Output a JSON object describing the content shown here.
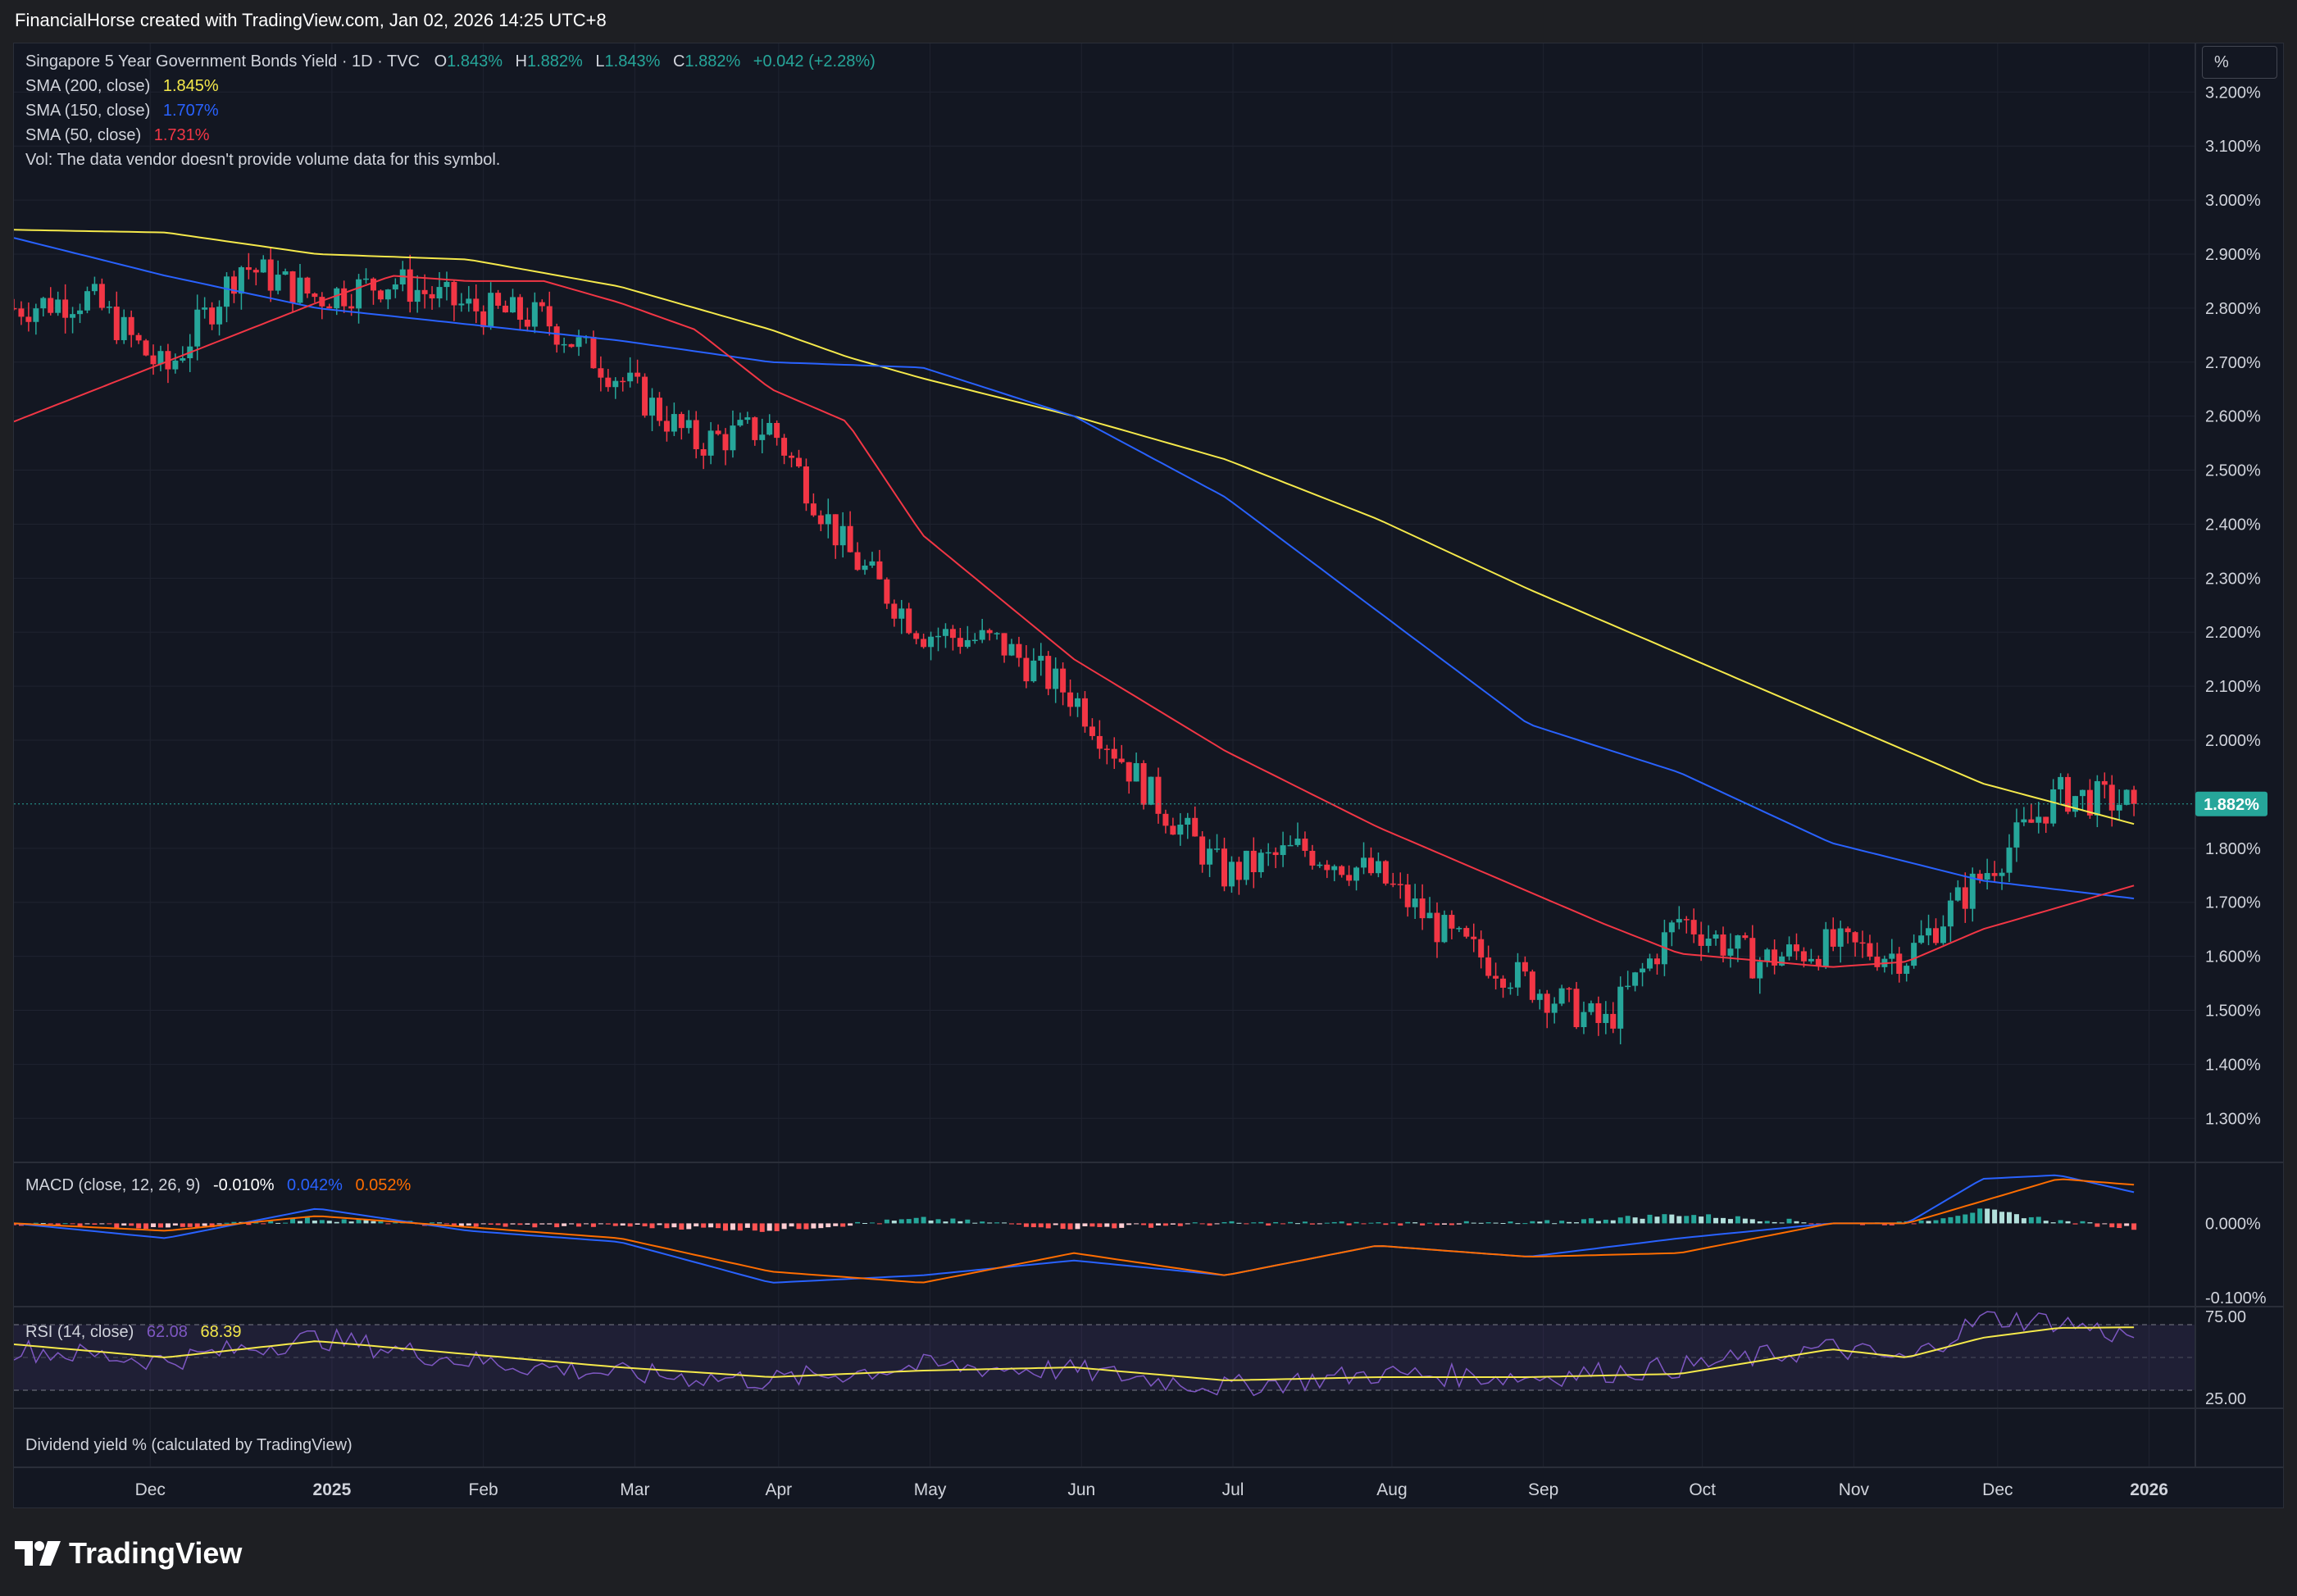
{
  "header": {
    "attribution": "FinancialHorse created with TradingView.com, Jan 02, 2026 14:25 UTC+8"
  },
  "units_button": {
    "label": "%"
  },
  "brand": {
    "name": "TradingView"
  },
  "legend": {
    "symbol": "Singapore 5 Year Government Bonds Yield · 1D · TVC",
    "ohlc": [
      {
        "key": "O",
        "value": "1.843%"
      },
      {
        "key": "H",
        "value": "1.882%"
      },
      {
        "key": "L",
        "value": "1.843%"
      },
      {
        "key": "C",
        "value": "1.882%"
      }
    ],
    "change": "+0.042 (+2.28%)",
    "sma": [
      {
        "label": "SMA (200, close)",
        "value": "1.845%",
        "color": "#f5e94b"
      },
      {
        "label": "SMA (150, close)",
        "value": "1.707%",
        "color": "#2962ff"
      },
      {
        "label": "SMA (50, close)",
        "value": "1.731%",
        "color": "#f23645"
      }
    ],
    "vol_note": "Vol: The data vendor doesn't provide volume data for this symbol."
  },
  "price_badge": "1.882%",
  "macd_legend": {
    "label": "MACD (close, 12, 26, 9)",
    "hist": "-0.010%",
    "macd": "0.042%",
    "signal": "0.052%"
  },
  "rsi_legend": {
    "label": "RSI (14, close)",
    "rsi": "62.08",
    "ma": "68.39"
  },
  "dividend_label": "Dividend yield % (calculated by TradingView)",
  "colors": {
    "up": "#26a69a",
    "down": "#f23645",
    "sma200": "#f5e94b",
    "sma150": "#2962ff",
    "sma50": "#f23645",
    "macd": "#2962ff",
    "signal": "#ff6d00",
    "rsi": "#7e57c2",
    "rsi_ma": "#f5e94b",
    "background": "#131722"
  },
  "chart_data": {
    "type": "candlestick",
    "title": "Singapore 5 Year Government Bonds Yield · 1D · TVC",
    "price_axis": {
      "range": [
        1.22,
        3.29
      ],
      "ticks": [
        "3.200%",
        "3.100%",
        "3.000%",
        "2.900%",
        "2.800%",
        "2.700%",
        "2.600%",
        "2.500%",
        "2.400%",
        "2.300%",
        "2.200%",
        "2.100%",
        "2.000%",
        "1.800%",
        "1.700%",
        "1.600%",
        "1.500%",
        "1.400%",
        "1.300%"
      ]
    },
    "time_axis": {
      "labels": [
        "Dec",
        "2025",
        "Feb",
        "Mar",
        "Apr",
        "May",
        "Jun",
        "Jul",
        "Aug",
        "Sep",
        "Oct",
        "Nov",
        "Dec",
        "2026"
      ],
      "label_t": [
        0.9,
        2.1,
        3.1,
        4.1,
        5.05,
        6.05,
        7.05,
        8.05,
        9.1,
        10.1,
        11.15,
        12.15,
        13.1,
        14.1
      ]
    },
    "price_series": {
      "t": [
        0,
        0.5,
        1,
        1.5,
        2,
        2.5,
        3,
        3.5,
        4,
        4.5,
        5,
        5.5,
        6,
        6.5,
        7,
        7.5,
        8,
        8.5,
        9,
        9.5,
        10,
        10.5,
        11,
        11.5,
        12,
        12.5,
        13,
        13.5,
        14
      ],
      "close": [
        2.8,
        2.82,
        2.68,
        2.88,
        2.82,
        2.85,
        2.8,
        2.78,
        2.67,
        2.55,
        2.58,
        2.35,
        2.2,
        2.18,
        2.08,
        1.9,
        1.75,
        1.8,
        1.75,
        1.63,
        1.55,
        1.47,
        1.67,
        1.59,
        1.62,
        1.6,
        1.75,
        1.9,
        1.882
      ]
    },
    "sma200": {
      "t": [
        0,
        1,
        2,
        3,
        4,
        4.5,
        5,
        5.5,
        6,
        7,
        8,
        9,
        10,
        11,
        12,
        13,
        14
      ],
      "values": [
        2.945,
        2.94,
        2.9,
        2.89,
        2.84,
        2.8,
        2.76,
        2.71,
        2.67,
        2.6,
        2.52,
        2.41,
        2.28,
        2.16,
        2.04,
        1.92,
        1.845
      ]
    },
    "sma150": {
      "t": [
        0,
        1,
        2,
        3,
        4,
        5,
        6,
        7,
        8,
        9,
        10,
        11,
        12,
        13,
        14
      ],
      "values": [
        2.93,
        2.86,
        2.8,
        2.77,
        2.74,
        2.7,
        2.69,
        2.6,
        2.45,
        2.24,
        2.03,
        1.94,
        1.81,
        1.74,
        1.707
      ]
    },
    "sma50": {
      "t": [
        0,
        1,
        2,
        2.5,
        3,
        3.5,
        4,
        4.5,
        5,
        5.5,
        6,
        7,
        8,
        9,
        10,
        10.5,
        11,
        12,
        12.5,
        13,
        14
      ],
      "values": [
        2.59,
        2.7,
        2.81,
        2.86,
        2.85,
        2.85,
        2.81,
        2.76,
        2.65,
        2.59,
        2.38,
        2.15,
        1.98,
        1.84,
        1.72,
        1.66,
        1.605,
        1.58,
        1.59,
        1.65,
        1.731
      ]
    },
    "macd": {
      "range": [
        -0.11,
        0.08
      ],
      "ticks": [
        "0.000%",
        "-0.100%"
      ],
      "t": [
        0,
        1,
        2,
        3,
        4,
        5,
        6,
        7,
        8,
        9,
        10,
        11,
        12,
        12.5,
        13,
        13.5,
        14
      ],
      "macd_values": [
        0.0,
        -0.02,
        0.02,
        -0.01,
        -0.025,
        -0.08,
        -0.07,
        -0.05,
        -0.07,
        -0.03,
        -0.045,
        -0.02,
        0.0,
        0.0,
        0.06,
        0.065,
        0.042
      ],
      "signal_values": [
        0.0,
        -0.01,
        0.01,
        -0.005,
        -0.02,
        -0.065,
        -0.08,
        -0.04,
        -0.07,
        -0.03,
        -0.045,
        -0.04,
        0.0,
        0.0,
        0.03,
        0.06,
        0.052
      ]
    },
    "rsi": {
      "range": [
        20,
        80
      ],
      "ticks": [
        "75.00",
        "25.00"
      ],
      "band": [
        30,
        70
      ],
      "t": [
        0,
        1,
        2,
        3,
        4,
        5,
        6,
        7,
        8,
        9,
        10,
        11,
        12,
        12.5,
        13,
        13.5,
        14
      ],
      "rsi_values": [
        55,
        48,
        62,
        48,
        40,
        36,
        45,
        42,
        32,
        40,
        38,
        44,
        56,
        48,
        74,
        72,
        62.08
      ],
      "ma_values": [
        58,
        50,
        60,
        52,
        44,
        38,
        42,
        44,
        36,
        38,
        38,
        40,
        55,
        50,
        62,
        68,
        68.39
      ]
    }
  }
}
